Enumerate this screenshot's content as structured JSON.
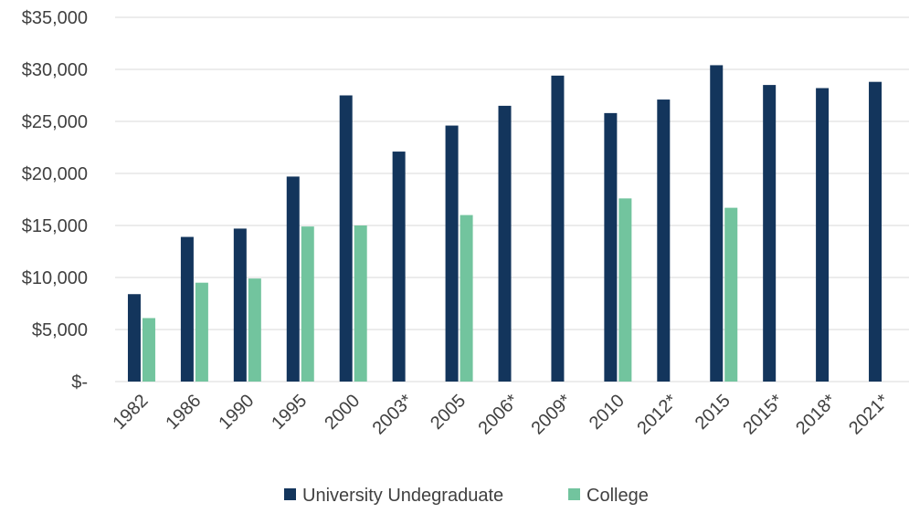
{
  "colors": {
    "university": "#13355c",
    "college": "#72c49e",
    "grid": "#d9d9d9",
    "text": "#404040"
  },
  "chart_data": {
    "type": "bar",
    "title": "",
    "xlabel": "",
    "ylabel": "",
    "ylim": [
      0,
      35000
    ],
    "grid": true,
    "legend": "bottom-center",
    "y_ticks": [
      {
        "value": 0,
        "label": "$-"
      },
      {
        "value": 5000,
        "label": "$5,000"
      },
      {
        "value": 10000,
        "label": "$10,000"
      },
      {
        "value": 15000,
        "label": "$15,000"
      },
      {
        "value": 20000,
        "label": "$20,000"
      },
      {
        "value": 25000,
        "label": "$25,000"
      },
      {
        "value": 30000,
        "label": "$30,000"
      },
      {
        "value": 35000,
        "label": "$35,000"
      }
    ],
    "categories": [
      "1982",
      "1986",
      "1990",
      "1995",
      "2000",
      "2003*",
      "2005",
      "2006*",
      "2009*",
      "2010",
      "2012*",
      "2015",
      "2015*",
      "2018*",
      "2021*"
    ],
    "series": [
      {
        "name": "University Undegraduate",
        "color": "#13355c",
        "values": [
          8400,
          13900,
          14700,
          19700,
          27500,
          22100,
          24600,
          26500,
          29400,
          25800,
          27100,
          30400,
          28500,
          28200,
          28800
        ]
      },
      {
        "name": "College",
        "color": "#72c49e",
        "values": [
          6100,
          9500,
          9900,
          14900,
          15000,
          null,
          16000,
          null,
          null,
          17600,
          null,
          16700,
          null,
          null,
          null
        ]
      }
    ]
  }
}
